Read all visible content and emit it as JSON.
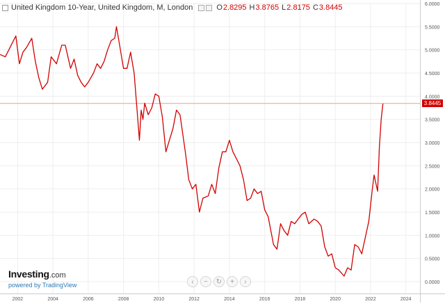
{
  "header": {
    "title": "United Kingdom 10-Year, United Kingdom, M, London",
    "ohlc": [
      {
        "key": "O",
        "value": "2.8295"
      },
      {
        "key": "H",
        "value": "3.8765"
      },
      {
        "key": "L",
        "value": "2.8175"
      },
      {
        "key": "C",
        "value": "3.8445"
      }
    ]
  },
  "last_price_label": "3.8445",
  "brand": {
    "name": "Investing",
    "domain": ".com",
    "powered": "powered by TradingView"
  },
  "nav_buttons": [
    {
      "name": "scroll-left-button",
      "glyph": "‹"
    },
    {
      "name": "zoom-out-button",
      "glyph": "−"
    },
    {
      "name": "reset-button",
      "glyph": "↻"
    },
    {
      "name": "zoom-in-button",
      "glyph": "+"
    },
    {
      "name": "scroll-right-button",
      "glyph": "›"
    }
  ],
  "colors": {
    "line": "#d10000",
    "price_line": "#f0a080",
    "grid": "#eeeeee",
    "axis_text": "#555555"
  },
  "chart_data": {
    "type": "line",
    "title": "United Kingdom 10-Year, United Kingdom, M, London",
    "grid": true,
    "ylim": [
      0,
      6
    ],
    "y_ticks": [
      "6.0000",
      "5.5000",
      "5.0000",
      "4.5000",
      "4.0000",
      "3.5000",
      "3.0000",
      "2.5000",
      "2.0000",
      "1.5000",
      "1.0000",
      "0.5000",
      "0.0000"
    ],
    "x_ticks": [
      "2002",
      "2004",
      "2006",
      "2008",
      "2010",
      "2012",
      "2014",
      "2016",
      "2018",
      "2020",
      "2022",
      "2024"
    ],
    "last_value": 3.8445,
    "series": [
      {
        "x": [
          2001.0,
          2001.3,
          2001.5,
          2001.9,
          2002.1,
          2002.3,
          2002.5,
          2002.8,
          2003.0,
          2003.2,
          2003.4,
          2003.7,
          2003.9,
          2004.2,
          2004.5,
          2004.7,
          2005.0,
          2005.2,
          2005.4,
          2005.6,
          2005.8,
          2006.0,
          2006.3,
          2006.5,
          2006.7,
          2006.9,
          2007.1,
          2007.3,
          2007.5,
          2007.6,
          2007.8,
          2008.0,
          2008.2,
          2008.4,
          2008.6,
          2008.8,
          2008.9,
          2009.0,
          2009.1,
          2009.2,
          2009.4,
          2009.6,
          2009.8,
          2010.0,
          2010.2,
          2010.4,
          2010.6,
          2010.8,
          2011.0,
          2011.2,
          2011.5,
          2011.7,
          2011.9,
          2012.1,
          2012.3,
          2012.5,
          2012.8,
          2013.0,
          2013.2,
          2013.4,
          2013.6,
          2013.8,
          2014.0,
          2014.2,
          2014.4,
          2014.6,
          2014.8,
          2015.0,
          2015.2,
          2015.4,
          2015.6,
          2015.8,
          2016.0,
          2016.2,
          2016.5,
          2016.7,
          2016.9,
          2017.1,
          2017.3,
          2017.5,
          2017.7,
          2017.9,
          2018.1,
          2018.3,
          2018.5,
          2018.8,
          2019.0,
          2019.2,
          2019.4,
          2019.6,
          2019.8,
          2020.0,
          2020.2,
          2020.5,
          2020.7,
          2020.9,
          2021.1,
          2021.3,
          2021.5,
          2021.7,
          2021.9,
          2022.1,
          2022.2,
          2022.4,
          2022.5,
          2022.6,
          2022.7
        ],
        "y": [
          4.9,
          4.85,
          5.0,
          5.3,
          4.7,
          4.95,
          5.05,
          5.25,
          4.75,
          4.4,
          4.15,
          4.3,
          4.85,
          4.7,
          5.1,
          5.1,
          4.6,
          4.8,
          4.45,
          4.3,
          4.2,
          4.3,
          4.5,
          4.7,
          4.6,
          4.75,
          5.0,
          5.2,
          5.25,
          5.5,
          5.05,
          4.6,
          4.6,
          4.95,
          4.5,
          3.55,
          3.05,
          3.7,
          3.5,
          3.85,
          3.6,
          3.75,
          4.05,
          4.0,
          3.55,
          2.8,
          3.05,
          3.3,
          3.7,
          3.6,
          2.8,
          2.2,
          2.0,
          2.1,
          1.5,
          1.8,
          1.85,
          2.1,
          1.9,
          2.45,
          2.8,
          2.8,
          3.05,
          2.8,
          2.65,
          2.5,
          2.2,
          1.75,
          1.8,
          2.0,
          1.9,
          1.95,
          1.55,
          1.4,
          0.8,
          0.7,
          1.25,
          1.1,
          1.0,
          1.3,
          1.25,
          1.35,
          1.45,
          1.5,
          1.25,
          1.35,
          1.3,
          1.2,
          0.75,
          0.55,
          0.6,
          0.3,
          0.25,
          0.12,
          0.3,
          0.25,
          0.8,
          0.75,
          0.6,
          0.95,
          1.3,
          2.0,
          2.3,
          1.95,
          2.9,
          3.5,
          3.84
        ]
      }
    ]
  }
}
